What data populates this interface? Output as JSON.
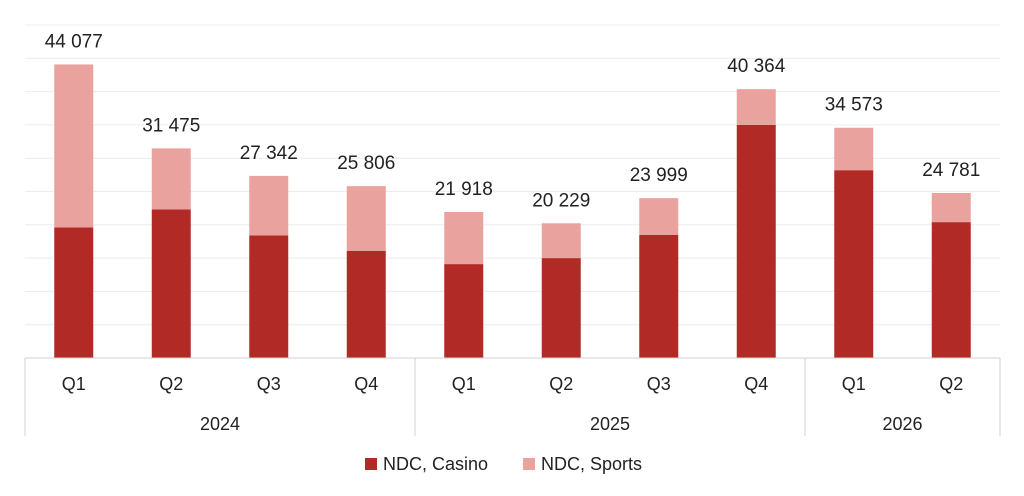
{
  "chart_data": {
    "type": "bar",
    "stacked": true,
    "title": "",
    "xlabel": "",
    "ylabel": "",
    "ylim": [
      0,
      50000
    ],
    "grid": true,
    "legend_position": "bottom",
    "groups": [
      {
        "label": "2024",
        "categories": [
          "Q1",
          "Q2",
          "Q3",
          "Q4"
        ]
      },
      {
        "label": "2025",
        "categories": [
          "Q1",
          "Q2",
          "Q3",
          "Q4"
        ]
      },
      {
        "label": "2026",
        "categories": [
          "Q1",
          "Q2"
        ]
      }
    ],
    "categories": [
      "Q1",
      "Q2",
      "Q3",
      "Q4",
      "Q1",
      "Q2",
      "Q3",
      "Q4",
      "Q1",
      "Q2"
    ],
    "totals": [
      "44 077",
      "31 475",
      "27 342",
      "25 806",
      "21 918",
      "20 229",
      "23 999",
      "40 364",
      "34 573",
      "24 781"
    ],
    "series": [
      {
        "name": "NDC, Casino",
        "color": "#b22a25",
        "values": [
          19600,
          22300,
          18400,
          16100,
          14100,
          15000,
          18500,
          35000,
          28200,
          20400
        ]
      },
      {
        "name": "NDC, Sports",
        "color": "#e9a29d",
        "values": [
          24477,
          9175,
          8942,
          9706,
          7818,
          5229,
          5499,
          5364,
          6373,
          4381
        ]
      }
    ]
  }
}
